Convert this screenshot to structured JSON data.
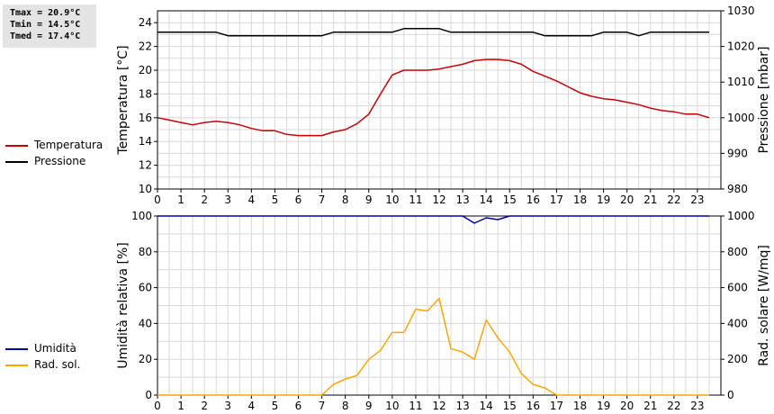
{
  "stats": {
    "tmax": "Tmax = 20.9°C",
    "tmin": "Tmin = 14.5°C",
    "tmed": "Tmed = 17.4°C"
  },
  "legend_top": [
    {
      "label": "Temperatura",
      "color": "#cc0000"
    },
    {
      "label": "Pressione",
      "color": "#000000"
    }
  ],
  "legend_bottom": [
    {
      "label": "Umidità",
      "color": "#0000aa"
    },
    {
      "label": "Rad. sol.",
      "color": "#ffa500"
    }
  ],
  "chart_data": [
    {
      "type": "line",
      "ylabel": "Temperatura [°C]",
      "y2label": "Pressione [mbar]",
      "xlim": [
        0,
        24
      ],
      "ylim": [
        10,
        25
      ],
      "y2lim": [
        980,
        1030
      ],
      "xticks": [
        "0",
        "1",
        "2",
        "3",
        "4",
        "5",
        "6",
        "7",
        "8",
        "9",
        "10",
        "11",
        "12",
        "13",
        "14",
        "15",
        "16",
        "17",
        "18",
        "19",
        "20",
        "21",
        "22",
        "23"
      ],
      "yticks": [
        "10",
        "12",
        "14",
        "16",
        "18",
        "20",
        "22",
        "24"
      ],
      "y2ticks": [
        "980",
        "990",
        "1000",
        "1010",
        "1020",
        "1030"
      ],
      "grid": true,
      "series": [
        {
          "name": "Temperatura",
          "axis": "left",
          "color": "#cc0000",
          "x": [
            0,
            0.5,
            1,
            1.5,
            2,
            2.5,
            3,
            3.5,
            4,
            4.5,
            5,
            5.5,
            6,
            6.5,
            7,
            7.5,
            8,
            8.5,
            9,
            9.5,
            10,
            10.5,
            11,
            11.5,
            12,
            12.5,
            13,
            13.5,
            14,
            14.5,
            15,
            15.5,
            16,
            16.5,
            17,
            17.5,
            18,
            18.5,
            19,
            19.5,
            20,
            20.5,
            21,
            21.5,
            22,
            22.5,
            23,
            23.5
          ],
          "y": [
            16.0,
            15.8,
            15.6,
            15.4,
            15.6,
            15.7,
            15.6,
            15.4,
            15.1,
            14.9,
            14.9,
            14.6,
            14.5,
            14.5,
            14.5,
            14.8,
            15.0,
            15.5,
            16.3,
            18.0,
            19.6,
            20.0,
            20.0,
            20.0,
            20.1,
            20.3,
            20.5,
            20.8,
            20.9,
            20.9,
            20.8,
            20.5,
            19.9,
            19.5,
            19.1,
            18.6,
            18.1,
            17.8,
            17.6,
            17.5,
            17.3,
            17.1,
            16.8,
            16.6,
            16.5,
            16.3,
            16.3,
            16.0
          ]
        },
        {
          "name": "Pressione",
          "axis": "right",
          "color": "#000000",
          "x": [
            0,
            0.5,
            1,
            1.5,
            2,
            2.5,
            3,
            3.5,
            4,
            4.5,
            5,
            5.5,
            6,
            6.5,
            7,
            7.5,
            8,
            8.5,
            9,
            9.5,
            10,
            10.5,
            11,
            11.5,
            12,
            12.5,
            13,
            13.5,
            14,
            14.5,
            15,
            15.5,
            16,
            16.5,
            17,
            17.5,
            18,
            18.5,
            19,
            19.5,
            20,
            20.5,
            21,
            21.5,
            22,
            22.5,
            23,
            23.5
          ],
          "y": [
            1024,
            1024,
            1024,
            1024,
            1024,
            1024,
            1023,
            1023,
            1023,
            1023,
            1023,
            1023,
            1023,
            1023,
            1023,
            1024,
            1024,
            1024,
            1024,
            1024,
            1024,
            1025,
            1025,
            1025,
            1025,
            1024,
            1024,
            1024,
            1024,
            1024,
            1024,
            1024,
            1024,
            1023,
            1023,
            1023,
            1023,
            1023,
            1024,
            1024,
            1024,
            1023,
            1024,
            1024,
            1024,
            1024,
            1024,
            1024
          ]
        }
      ]
    },
    {
      "type": "line",
      "ylabel": "Umidità relativa [%]",
      "y2label": "Rad. solare [W/mq]",
      "xlim": [
        0,
        24
      ],
      "ylim": [
        0,
        100
      ],
      "y2lim": [
        0,
        1000
      ],
      "xticks": [
        "0",
        "1",
        "2",
        "3",
        "4",
        "5",
        "6",
        "7",
        "8",
        "9",
        "10",
        "11",
        "12",
        "13",
        "14",
        "15",
        "16",
        "17",
        "18",
        "19",
        "20",
        "21",
        "22",
        "23"
      ],
      "yticks": [
        "0",
        "20",
        "40",
        "60",
        "80",
        "100"
      ],
      "y2ticks": [
        "0",
        "200",
        "400",
        "600",
        "800",
        "1000"
      ],
      "grid": true,
      "series": [
        {
          "name": "Umidità",
          "axis": "left",
          "color": "#0000aa",
          "x": [
            0,
            1,
            2,
            3,
            4,
            5,
            6,
            7,
            8,
            9,
            10,
            11,
            12,
            13,
            13.5,
            14,
            14.5,
            15,
            16,
            17,
            18,
            19,
            20,
            21,
            22,
            23,
            23.5
          ],
          "y": [
            100,
            100,
            100,
            100,
            100,
            100,
            100,
            100,
            100,
            100,
            100,
            100,
            100,
            100,
            96,
            99,
            98,
            100,
            100,
            100,
            100,
            100,
            100,
            100,
            100,
            100,
            100
          ]
        },
        {
          "name": "Rad. sol.",
          "axis": "right",
          "color": "#ffa500",
          "x": [
            0,
            0.5,
            1,
            1.5,
            2,
            2.5,
            3,
            3.5,
            4,
            4.5,
            5,
            5.5,
            6,
            6.5,
            7,
            7.5,
            8,
            8.5,
            9,
            9.5,
            10,
            10.5,
            11,
            11.5,
            12,
            12.5,
            13,
            13.5,
            14,
            14.5,
            15,
            15.5,
            16,
            16.5,
            17,
            17.5,
            18,
            18.5,
            19,
            19.5,
            20,
            20.5,
            21,
            21.5,
            22,
            22.5,
            23,
            23.5
          ],
          "y": [
            0,
            0,
            0,
            0,
            0,
            0,
            0,
            0,
            0,
            0,
            0,
            0,
            0,
            0,
            0,
            60,
            90,
            110,
            200,
            250,
            350,
            350,
            480,
            470,
            540,
            260,
            240,
            200,
            420,
            320,
            240,
            120,
            60,
            40,
            0,
            0,
            0,
            0,
            0,
            0,
            0,
            0,
            0,
            0,
            0,
            0,
            0,
            0
          ]
        }
      ]
    }
  ]
}
